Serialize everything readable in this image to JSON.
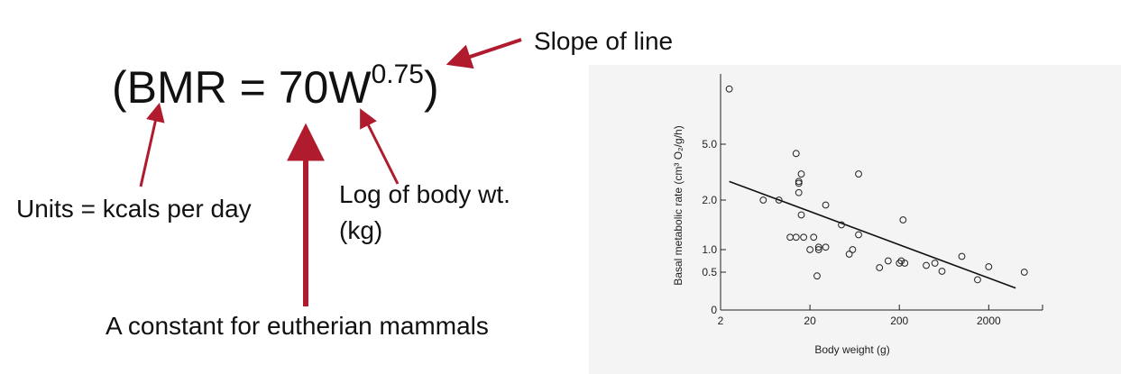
{
  "annotations": {
    "formula_prefix": "(BMR = 70W",
    "formula_exponent": "0.75",
    "formula_suffix": ")",
    "slope_label": "Slope of line",
    "units_label": "Units = kcals per day",
    "log_label_line1": "Log of body wt.",
    "log_label_line2": "(kg)",
    "constant_label": "A constant for eutherian mammals",
    "arrow_color": "#b01c2e"
  },
  "chart_data": {
    "type": "scatter",
    "xlabel": "Body weight (g)",
    "ylabel": "Basal metabolic rate (cm³ O₂/g/h)",
    "x_ticks": [
      "2",
      "20",
      "200",
      "2000"
    ],
    "y_ticks": [
      "0",
      "0.5",
      "1.0",
      "2.0",
      "5.0"
    ],
    "points": [
      [
        2.5,
        10.5
      ],
      [
        6,
        2.0
      ],
      [
        9,
        2.0
      ],
      [
        12,
        1.25
      ],
      [
        14,
        1.25
      ],
      [
        14,
        4.5
      ],
      [
        15,
        2.9
      ],
      [
        15,
        3.0
      ],
      [
        15,
        2.4
      ],
      [
        16,
        1.7
      ],
      [
        16,
        3.4
      ],
      [
        17,
        1.25
      ],
      [
        20,
        1.0
      ],
      [
        22,
        1.25
      ],
      [
        24,
        0.45
      ],
      [
        25,
        1.05
      ],
      [
        25,
        1.0
      ],
      [
        30,
        1.05
      ],
      [
        30,
        1.9
      ],
      [
        45,
        1.5
      ],
      [
        55,
        0.9
      ],
      [
        60,
        1.0
      ],
      [
        70,
        1.3
      ],
      [
        70,
        3.4
      ],
      [
        120,
        0.6
      ],
      [
        150,
        0.75
      ],
      [
        200,
        0.7
      ],
      [
        210,
        0.75
      ],
      [
        220,
        1.6
      ],
      [
        230,
        0.7
      ],
      [
        400,
        0.65
      ],
      [
        500,
        0.7
      ],
      [
        600,
        0.52
      ],
      [
        1000,
        0.85
      ],
      [
        1500,
        0.4
      ],
      [
        2000,
        0.62
      ],
      [
        5000,
        0.5
      ]
    ],
    "regression_line": [
      [
        2.5,
        3.0
      ],
      [
        4000,
        0.29
      ]
    ],
    "grid": false,
    "marker": "open-circle"
  }
}
